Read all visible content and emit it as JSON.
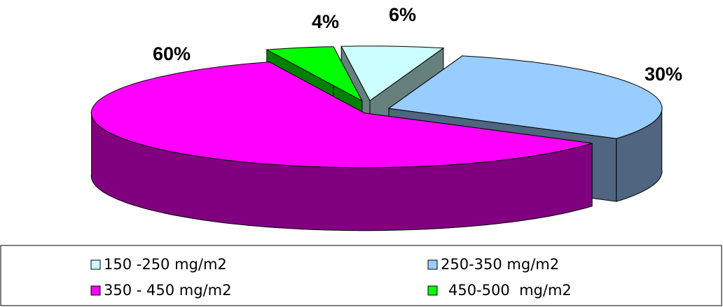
{
  "chart_data": {
    "type": "pie",
    "title": "",
    "categories": [
      "150 -250 mg/m2",
      "250-350 mg/m2",
      "350 - 450 mg/m2",
      "450-500  mg/m2"
    ],
    "values": [
      6,
      30,
      60,
      4
    ],
    "data_labels": [
      "6%",
      "30%",
      "60%",
      "4%"
    ],
    "unit": "%",
    "exploded": true,
    "three_d": true,
    "legend_position": "bottom",
    "colors": {
      "top": [
        "#ccffff",
        "#99ccff",
        "#ff00ff",
        "#00ff00"
      ],
      "side": [
        "#66807d",
        "#4f6580",
        "#800080",
        "#008000"
      ]
    },
    "legend": [
      {
        "label": "150 -250 mg/m2",
        "color": "#ccffff"
      },
      {
        "label": "250-350 mg/m2",
        "color": "#99ccff"
      },
      {
        "label": "350 - 450 mg/m2",
        "color": "#ff00ff"
      },
      {
        "label": "450-500  mg/m2",
        "color": "#00ff00"
      }
    ]
  }
}
